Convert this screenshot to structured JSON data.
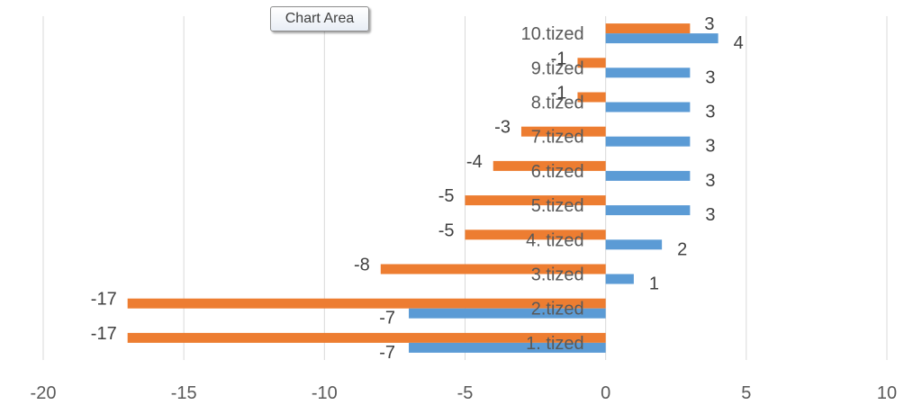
{
  "tooltip": {
    "label": "Chart Area"
  },
  "chart_data": {
    "type": "bar",
    "orientation": "horizontal",
    "categories": [
      "1. tized",
      "2.tized",
      "3.tized",
      "4. tized",
      "5.tized",
      "6.tized",
      "7.tized",
      "8.tized",
      "9.tized",
      "10.tized"
    ],
    "series": [
      {
        "values": [
          -7,
          -7,
          1,
          2,
          3,
          3,
          3,
          3,
          3,
          4
        ],
        "color": "#5b9bd5"
      },
      {
        "values": [
          -17,
          -17,
          -8,
          -5,
          -5,
          -4,
          -3,
          -1,
          -1,
          3
        ],
        "color": "#ed7d31"
      }
    ],
    "xlim": [
      -20,
      10
    ],
    "xticks": [
      -20,
      -15,
      -10,
      -5,
      0,
      5,
      10
    ],
    "grid": true,
    "title": "",
    "xlabel": "",
    "ylabel": ""
  }
}
